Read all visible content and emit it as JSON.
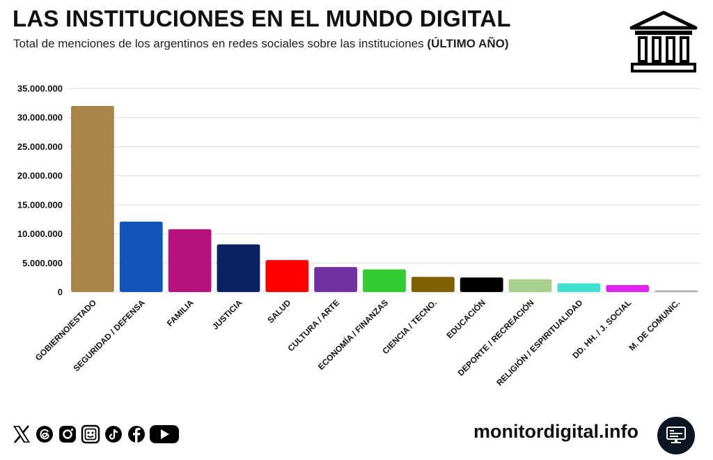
{
  "header": {
    "title": "LAS INSTITUCIONES EN EL MUNDO DIGITAL",
    "subtitle": "Total de menciones de los argentinos en redes sociales sobre las instituciones",
    "subtitle_bold": "(ÚLTIMO AÑO)"
  },
  "chart_data": {
    "type": "bar",
    "title": "LAS INSTITUCIONES EN EL MUNDO DIGITAL",
    "xlabel": "",
    "ylabel": "",
    "ylim": [
      0,
      35000000
    ],
    "yticks": [
      0,
      5000000,
      10000000,
      15000000,
      20000000,
      25000000,
      30000000,
      35000000
    ],
    "ytick_labels": [
      "0",
      "5.000.000",
      "10.000.000",
      "15.000.000",
      "20.000.000",
      "25.000.000",
      "30.000.000",
      "35.000.000"
    ],
    "grid": true,
    "categories": [
      "GOBIERNO/ESTADO",
      "SEGURIDAD / DEFENSA",
      "FAMILIA",
      "JUSTICIA",
      "SALUD",
      "CULTURA / ARTE",
      "ECONOMÍA / FINANZAS",
      "CIENCIA / TECNO.",
      "EDUCACIÓN",
      "DEPORTE / RECREACIÓN",
      "RELIGIÓN / ESPIRITUALIDAD",
      "DD. HH. / J. SOCIAL",
      "M. DE COMUNIC."
    ],
    "values": [
      32000000,
      12100000,
      10800000,
      8200000,
      5500000,
      4300000,
      3900000,
      2600000,
      2500000,
      2200000,
      1500000,
      1200000,
      300000
    ],
    "colors": [
      "#a8864a",
      "#1155bb",
      "#b5127e",
      "#0a2260",
      "#ff0000",
      "#7030a0",
      "#33cc33",
      "#7f6000",
      "#000000",
      "#a9d18e",
      "#40e0d0",
      "#e024f0",
      "#b0b0b0"
    ]
  },
  "footer": {
    "site": "monitordigital.info",
    "social_icons": [
      "x-icon",
      "threads-icon",
      "instagram-icon",
      "media-icon",
      "tiktok-icon",
      "facebook-icon",
      "youtube-icon"
    ]
  }
}
